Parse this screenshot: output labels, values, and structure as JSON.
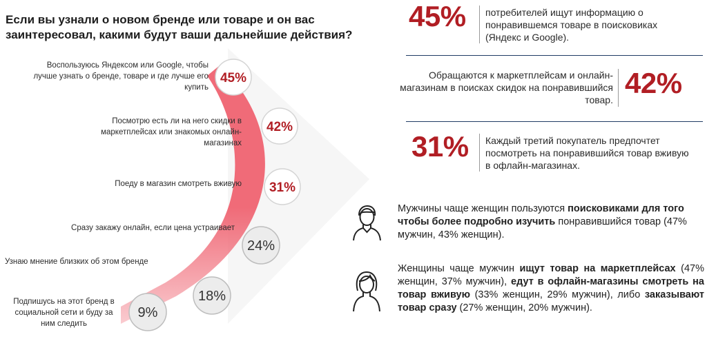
{
  "title": "Если вы узнали о новом бренде или товаре и он вас заинтересовал, какими будут ваши дальнейшие действия?",
  "chart_data": {
    "type": "bar",
    "unit": "%",
    "categories": [
      "Воспользуюсь Яндексом или Google, чтобы лучше узнать о бренде, товаре и где лучше его купить",
      "Посмотрю есть ли на него скидки в маркетплейсах или знакомых онлайн-магазинах",
      "Поеду в магазин смотреть вживую",
      "Сразу закажу онлайн, если цена устраивает",
      "Узнаю мнение близких об этом бренде",
      "Подпишусь на этот бренд в социальной сети и буду за ним следить"
    ],
    "values": [
      45,
      42,
      31,
      24,
      18,
      9
    ],
    "value_labels": [
      "45%",
      "42%",
      "31%",
      "24%",
      "18%",
      "9%"
    ],
    "highlighted": [
      true,
      true,
      true,
      false,
      false,
      false
    ]
  },
  "colors": {
    "accent": "#b11e24",
    "arc": "#f06b78",
    "circle_grey": "#ececec",
    "divider": "#1f3b63"
  },
  "stats": [
    {
      "pct": "45%",
      "text": "потребителей ищут информацию о понравившемся товаре в поисковиках (Яндекс и Google)."
    },
    {
      "pct": "42%",
      "text": "Обращаются к маркетплейсам и онлайн-магазинам в поисках скидок на понравившийся товар."
    },
    {
      "pct": "31%",
      "text": "Каждый третий покупатель предпочтет посмотреть на понравившийся товар вживую в офлайн-магазинах."
    }
  ],
  "men_note": {
    "icon": "man-icon",
    "a": "Мужчины чаще женщин пользуются ",
    "b": "поисковиками для того чтобы более подробно изучить",
    "c": " понравившийся товар (47% мужчин, 43% женщин)."
  },
  "women_note": {
    "icon": "woman-icon",
    "a": "Женщины чаще мужчин ",
    "b": "ищут товар на маркетплейсах",
    "c": " (47% женщин, 37% мужчин), ",
    "d": "едут в офлайн-магазины смотреть на товар вживую",
    "e": " (33% женщин, 29% мужчин), либо ",
    "f": "заказывают товар сразу",
    "g": " (27% женщин, 20% мужчин)."
  }
}
